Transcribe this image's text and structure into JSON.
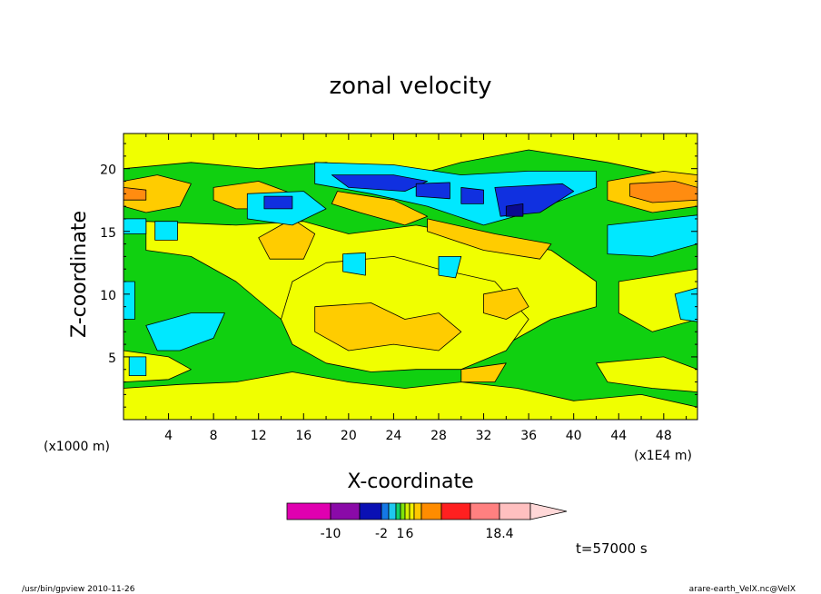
{
  "chart_data": {
    "type": "heatmap",
    "title": "zonal velocity",
    "xlabel": "X-coordinate",
    "ylabel": "Z-coordinate",
    "x_unit_label": "(x1E4 m)",
    "y_unit_label": "(x1000 m)",
    "xlim": [
      0,
      51
    ],
    "ylim": [
      0,
      22.8
    ],
    "x_ticks": [
      "4",
      "8",
      "12",
      "16",
      "20",
      "24",
      "28",
      "32",
      "36",
      "40",
      "44",
      "48"
    ],
    "x_tick_values": [
      4,
      8,
      12,
      16,
      20,
      24,
      28,
      32,
      36,
      40,
      44,
      48
    ],
    "y_ticks": [
      "5",
      "10",
      "15",
      "20"
    ],
    "y_tick_values": [
      5,
      10,
      15,
      20
    ],
    "field_levels": {
      "strong_negative": -10,
      "negative": -2,
      "weak_positive": 1,
      "positive": 6
    },
    "regions": [
      {
        "level": "positive_band",
        "points": [
          [
            0,
            23
          ],
          [
            51,
            23
          ],
          [
            51,
            19
          ],
          [
            43,
            20.5
          ],
          [
            36,
            21.5
          ],
          [
            30,
            20.5
          ],
          [
            24,
            19
          ],
          [
            18,
            20.5
          ],
          [
            12,
            20
          ],
          [
            6,
            20.5
          ],
          [
            0,
            20
          ]
        ]
      },
      {
        "level": "positive_band",
        "points": [
          [
            0,
            0
          ],
          [
            51,
            0
          ],
          [
            51,
            1
          ],
          [
            46,
            2
          ],
          [
            40,
            1.5
          ],
          [
            35,
            2.5
          ],
          [
            30,
            3
          ],
          [
            25,
            2.5
          ],
          [
            20,
            3
          ],
          [
            15,
            3.8
          ],
          [
            10,
            3
          ],
          [
            5,
            2.8
          ],
          [
            0,
            2.5
          ]
        ]
      },
      {
        "level": "positive_band",
        "points": [
          [
            2,
            15.8
          ],
          [
            10,
            15.5
          ],
          [
            16,
            15.8
          ],
          [
            20,
            14.8
          ],
          [
            26,
            15.5
          ],
          [
            32,
            14.5
          ],
          [
            38,
            13.5
          ],
          [
            42,
            11
          ],
          [
            42,
            9
          ],
          [
            38,
            8
          ],
          [
            34,
            6
          ],
          [
            30,
            5
          ],
          [
            26,
            6
          ],
          [
            22,
            5.5
          ],
          [
            18,
            6.5
          ],
          [
            14,
            8
          ],
          [
            10,
            11
          ],
          [
            6,
            13
          ],
          [
            2,
            13.5
          ]
        ]
      },
      {
        "level": "positive_band",
        "points": [
          [
            18,
            12.5
          ],
          [
            24,
            13
          ],
          [
            28,
            12
          ],
          [
            33,
            11
          ],
          [
            36,
            8
          ],
          [
            34,
            5.5
          ],
          [
            30,
            4
          ],
          [
            26,
            4
          ],
          [
            22,
            3.8
          ],
          [
            18,
            4.5
          ],
          [
            15,
            6
          ],
          [
            14,
            8
          ],
          [
            15,
            11
          ]
        ]
      },
      {
        "level": "positive_band",
        "points": [
          [
            44,
            11
          ],
          [
            51,
            12
          ],
          [
            51,
            8
          ],
          [
            47,
            7
          ],
          [
            44,
            8.5
          ]
        ]
      },
      {
        "level": "positive_band",
        "points": [
          [
            0,
            3
          ],
          [
            4,
            3.2
          ],
          [
            6,
            4
          ],
          [
            4,
            5
          ],
          [
            0,
            5.5
          ]
        ]
      },
      {
        "level": "positive_band",
        "points": [
          [
            42,
            4.5
          ],
          [
            48,
            5
          ],
          [
            51,
            4
          ],
          [
            51,
            2.2
          ],
          [
            47,
            2.5
          ],
          [
            43,
            3
          ]
        ]
      },
      {
        "level": "positive_core",
        "points": [
          [
            17,
            9
          ],
          [
            22,
            9.3
          ],
          [
            25,
            8
          ],
          [
            28,
            8.5
          ],
          [
            30,
            7
          ],
          [
            28,
            5.5
          ],
          [
            24,
            6
          ],
          [
            20,
            5.5
          ],
          [
            17,
            7
          ]
        ]
      },
      {
        "level": "positive_core",
        "points": [
          [
            12,
            14.5
          ],
          [
            15,
            16
          ],
          [
            17,
            14.8
          ],
          [
            16,
            12.8
          ],
          [
            13,
            12.8
          ]
        ]
      },
      {
        "level": "positive_core",
        "points": [
          [
            32,
            10
          ],
          [
            35,
            10.5
          ],
          [
            36,
            9
          ],
          [
            34,
            8
          ],
          [
            32,
            8.5
          ]
        ]
      },
      {
        "level": "positive_core",
        "points": [
          [
            0,
            19
          ],
          [
            3,
            19.5
          ],
          [
            6,
            18.8
          ],
          [
            5,
            17
          ],
          [
            2,
            16.5
          ],
          [
            0,
            17
          ]
        ]
      },
      {
        "level": "positive_core",
        "points": [
          [
            8,
            18.5
          ],
          [
            12,
            19
          ],
          [
            15,
            18
          ],
          [
            14,
            16.8
          ],
          [
            10,
            16.8
          ],
          [
            8,
            17.5
          ]
        ]
      },
      {
        "level": "positive_core",
        "points": [
          [
            19,
            18.2
          ],
          [
            24,
            17.5
          ],
          [
            27,
            16.2
          ],
          [
            25,
            15.5
          ],
          [
            21,
            16.5
          ],
          [
            18.5,
            17.2
          ]
        ]
      },
      {
        "level": "positive_core",
        "points": [
          [
            27,
            16
          ],
          [
            33,
            14.8
          ],
          [
            38,
            14
          ],
          [
            37,
            12.8
          ],
          [
            32,
            13.5
          ],
          [
            27,
            15
          ]
        ]
      },
      {
        "level": "positive_core",
        "points": [
          [
            43,
            19
          ],
          [
            48,
            19.8
          ],
          [
            51,
            19.5
          ],
          [
            51,
            17
          ],
          [
            47,
            16.5
          ],
          [
            43,
            17.5
          ]
        ]
      },
      {
        "level": "positive_core",
        "points": [
          [
            30,
            4
          ],
          [
            34,
            4.5
          ],
          [
            33,
            3
          ],
          [
            30,
            3
          ]
        ]
      },
      {
        "level": "positive_strong",
        "points": [
          [
            0,
            18.5
          ],
          [
            2,
            18.3
          ],
          [
            2,
            17.5
          ],
          [
            0,
            17.5
          ]
        ]
      },
      {
        "level": "positive_strong",
        "points": [
          [
            45,
            18.8
          ],
          [
            49,
            19
          ],
          [
            51,
            18.5
          ],
          [
            51,
            17.5
          ],
          [
            47,
            17.3
          ],
          [
            45,
            17.8
          ]
        ]
      },
      {
        "level": "negative",
        "points": [
          [
            17,
            20.5
          ],
          [
            24,
            20.3
          ],
          [
            30,
            19.5
          ],
          [
            36,
            19.8
          ],
          [
            42,
            19.8
          ],
          [
            42,
            18.5
          ],
          [
            36,
            16.5
          ],
          [
            32,
            15.5
          ],
          [
            27,
            17
          ],
          [
            22,
            18
          ],
          [
            17,
            18.8
          ]
        ]
      },
      {
        "level": "negative",
        "points": [
          [
            11,
            18
          ],
          [
            16,
            18.2
          ],
          [
            18,
            16.8
          ],
          [
            15,
            15.5
          ],
          [
            11,
            16
          ]
        ]
      },
      {
        "level": "negative",
        "points": [
          [
            43,
            15.5
          ],
          [
            48,
            16
          ],
          [
            51,
            16.3
          ],
          [
            51,
            14
          ],
          [
            47,
            13
          ],
          [
            43,
            13.2
          ]
        ]
      },
      {
        "level": "negative",
        "points": [
          [
            2,
            7.5
          ],
          [
            6,
            8.5
          ],
          [
            9,
            8.5
          ],
          [
            8,
            6.5
          ],
          [
            5,
            5.5
          ],
          [
            3,
            5.5
          ]
        ]
      },
      {
        "level": "negative",
        "points": [
          [
            0,
            11
          ],
          [
            1,
            11
          ],
          [
            1,
            8
          ],
          [
            0,
            8
          ]
        ]
      },
      {
        "level": "negative",
        "points": [
          [
            0,
            16
          ],
          [
            2,
            16
          ],
          [
            2,
            14.8
          ],
          [
            0,
            14.8
          ]
        ]
      },
      {
        "level": "negative",
        "points": [
          [
            0.5,
            5
          ],
          [
            2,
            5
          ],
          [
            2,
            3.5
          ],
          [
            0.5,
            3.5
          ]
        ]
      },
      {
        "level": "negative",
        "points": [
          [
            49,
            10
          ],
          [
            51,
            10.5
          ],
          [
            51,
            7.8
          ],
          [
            49.5,
            8
          ]
        ]
      },
      {
        "level": "negative",
        "points": [
          [
            28,
            13
          ],
          [
            30,
            13
          ],
          [
            29.5,
            11.3
          ],
          [
            28,
            11.5
          ]
        ]
      },
      {
        "level": "negative",
        "points": [
          [
            19.5,
            13.2
          ],
          [
            21.5,
            13.3
          ],
          [
            21.5,
            11.5
          ],
          [
            19.5,
            11.8
          ]
        ]
      },
      {
        "level": "negative",
        "points": [
          [
            2.8,
            15.8
          ],
          [
            4.8,
            15.8
          ],
          [
            4.8,
            14.3
          ],
          [
            2.8,
            14.3
          ]
        ]
      },
      {
        "level": "negative_strong",
        "points": [
          [
            18.5,
            19.5
          ],
          [
            24,
            19.5
          ],
          [
            27,
            19
          ],
          [
            25,
            18.2
          ],
          [
            20,
            18.5
          ]
        ]
      },
      {
        "level": "negative_strong",
        "points": [
          [
            26,
            18.8
          ],
          [
            29,
            18.9
          ],
          [
            29,
            17.6
          ],
          [
            26,
            17.8
          ]
        ]
      },
      {
        "level": "negative_strong",
        "points": [
          [
            30,
            18.5
          ],
          [
            32,
            18.3
          ],
          [
            32,
            17.2
          ],
          [
            30,
            17.2
          ]
        ]
      },
      {
        "level": "negative_strong",
        "points": [
          [
            33,
            18.5
          ],
          [
            39,
            18.8
          ],
          [
            40,
            18.2
          ],
          [
            37,
            16.5
          ],
          [
            33.5,
            16.2
          ]
        ]
      },
      {
        "level": "negative_strong",
        "points": [
          [
            12.5,
            17.8
          ],
          [
            15,
            17.8
          ],
          [
            15,
            16.8
          ],
          [
            12.5,
            16.8
          ]
        ]
      },
      {
        "level": "negative_core",
        "points": [
          [
            34,
            17
          ],
          [
            35.5,
            17.2
          ],
          [
            35.5,
            16.2
          ],
          [
            34,
            16.2
          ]
        ]
      }
    ]
  },
  "colorbar": {
    "tick_labels": [
      "-10",
      "-2",
      "1",
      "6",
      "18.4"
    ],
    "segment_colors": [
      "#e000b0",
      "#8a0aa8",
      "#0a10b4",
      "#1478e6",
      "#1ec8f0",
      "#10d06a",
      "#7ee30a",
      "#d6f000",
      "#f0f000",
      "#ffc800",
      "#ff8c00",
      "#ff2020",
      "#ff8080",
      "#ffc0c0"
    ],
    "arrow_color": "#ffd8d8",
    "tick_values": {
      "-10": 1,
      "-2": 3,
      "1": 6,
      "6": 8,
      "18.4": 13
    }
  },
  "level_colors": {
    "background": "#10d010",
    "positive_band": "#f0ff00",
    "positive_core": "#ffcc00",
    "positive_strong": "#ff8c10",
    "negative": "#00e8ff",
    "negative_strong": "#1030e0",
    "negative_core": "#0a0a90"
  },
  "annotations": {
    "time": "t=57000 s",
    "footer_left": "/usr/bin/gpview  2010-11-26",
    "footer_right": "arare-earth_VelX.nc@VelX"
  }
}
